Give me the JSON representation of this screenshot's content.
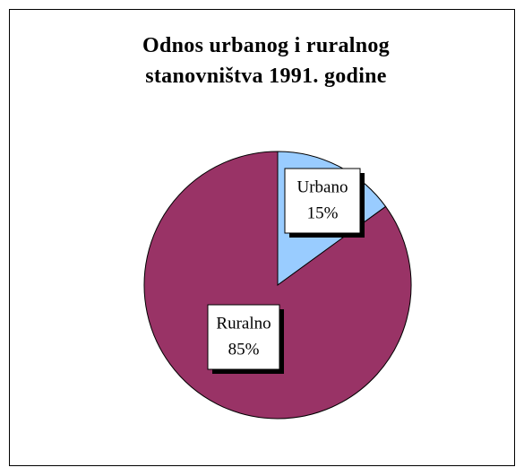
{
  "chart_data": {
    "type": "pie",
    "title": "Odnos urbanog i ruralnog stanovništva 1991. godine",
    "categories": [
      "Urbano",
      "Ruralno"
    ],
    "values": [
      15,
      85
    ],
    "value_labels": [
      "15%",
      "85%"
    ],
    "colors": [
      "#99ccff",
      "#993366"
    ]
  }
}
